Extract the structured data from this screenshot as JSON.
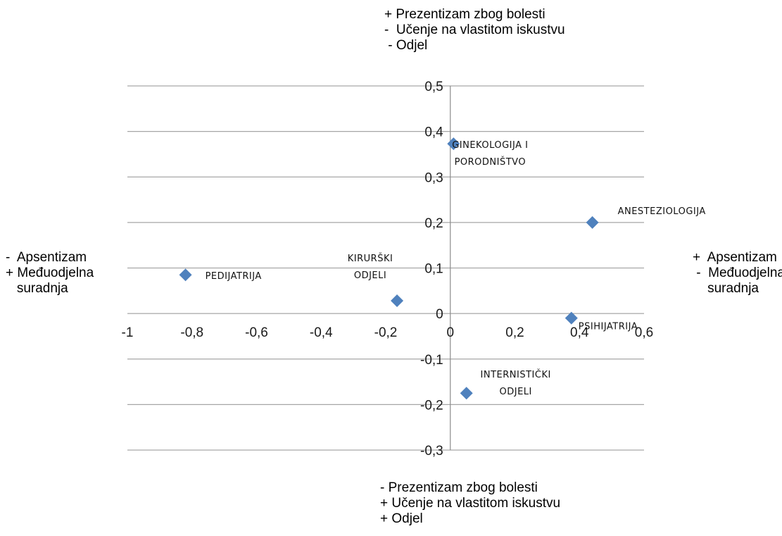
{
  "chart_data": {
    "type": "scatter",
    "title": "",
    "xlim": [
      -1,
      0.6
    ],
    "ylim": [
      -0.3,
      0.5
    ],
    "x_ticks": [
      "-1",
      "-0,8",
      "-0,6",
      "-0,4",
      "-0,2",
      "0",
      "0,2",
      "0,4",
      "0,6"
    ],
    "y_ticks": [
      "0,5",
      "0,4",
      "0,3",
      "0,2",
      "0,1",
      "0",
      "-0,1",
      "-0,2",
      "-0,3"
    ],
    "grid": "horizontal",
    "marker_color": "#4F81BD",
    "points": [
      {
        "label": [
          "PEDIJATRIJA"
        ],
        "x": -0.82,
        "y": 0.085
      },
      {
        "label": [
          "KIRURŠKI",
          "ODJELI"
        ],
        "x": -0.165,
        "y": 0.028
      },
      {
        "label": [
          "GINEKOLOGIJA I",
          "PORODNIŠTVO"
        ],
        "x": 0.01,
        "y": 0.373
      },
      {
        "label": [
          "ANESTEZIOLOGIJA"
        ],
        "x": 0.44,
        "y": 0.2
      },
      {
        "label": [
          "PSIHIJATRIJA"
        ],
        "x": 0.375,
        "y": -0.01
      },
      {
        "label": [
          "INTERNISTIČKI",
          "ODJELI"
        ],
        "x": 0.05,
        "y": -0.175
      }
    ],
    "axis_notes": {
      "top": "+ Prezentizam zbog bolesti\n-  Učenje na vlastitom iskustvu\n - Odjel",
      "bottom": "- Prezentizam zbog bolesti\n+ Učenje na vlastitom iskustvu\n+ Odjel",
      "left": "-  Apsentizam\n+ Međuodjelna\n   suradnja",
      "right": "+  Apsentizam\n -  Međuodjelna\n    suradnja"
    }
  }
}
